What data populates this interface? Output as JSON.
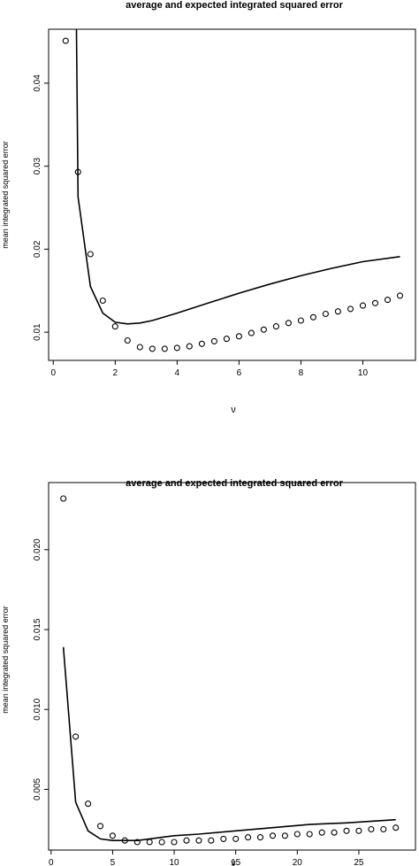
{
  "chart_data": [
    {
      "type": "line+scatter",
      "title": "average and expected integrated squared error",
      "xlabel": "ν",
      "ylabel": "mean integrated squared error",
      "xlim": [
        -0.15,
        11.7
      ],
      "ylim": [
        0.0066,
        0.0465
      ],
      "xticks": [
        0,
        2,
        4,
        6,
        8,
        10
      ],
      "yticks": [
        0.01,
        0.02,
        0.03,
        0.04
      ],
      "grid": false,
      "legend": "none",
      "series": [
        {
          "kind": "line",
          "x": [
            0.75,
            0.8,
            1.2,
            1.6,
            2.0,
            2.4,
            2.8,
            3.2,
            4.0,
            5.0,
            6.0,
            7.0,
            8.0,
            9.0,
            10.0,
            11.2
          ],
          "y": [
            0.0465,
            0.0263,
            0.0155,
            0.0123,
            0.0112,
            0.011,
            0.0111,
            0.0114,
            0.0123,
            0.0135,
            0.0147,
            0.0158,
            0.0168,
            0.0177,
            0.0185,
            0.0191
          ]
        },
        {
          "kind": "points",
          "x": [
            0.4,
            0.8,
            1.2,
            1.6,
            2.0,
            2.4,
            2.8,
            3.2,
            3.6,
            4.0,
            4.4,
            4.8,
            5.2,
            5.6,
            6.0,
            6.4,
            6.8,
            7.2,
            7.6,
            8.0,
            8.4,
            8.8,
            9.2,
            9.6,
            10.0,
            10.4,
            10.8,
            11.2
          ],
          "y": [
            0.0451,
            0.0293,
            0.0194,
            0.0138,
            0.0107,
            0.009,
            0.0082,
            0.008,
            0.008,
            0.0081,
            0.0083,
            0.0086,
            0.0089,
            0.0092,
            0.0095,
            0.0099,
            0.0103,
            0.0107,
            0.0111,
            0.0114,
            0.0118,
            0.0122,
            0.0125,
            0.0128,
            0.0132,
            0.0135,
            0.0139,
            0.0144
          ]
        }
      ]
    },
    {
      "type": "line+scatter",
      "title": "average and expected integrated squared error",
      "xlabel": "ν",
      "ylabel": "mean integrated squared error",
      "xlim": [
        -0.2,
        29.6
      ],
      "ylim": [
        0.0012,
        0.0242
      ],
      "xticks": [
        0,
        5,
        10,
        15,
        20,
        25
      ],
      "yticks": [
        0.005,
        0.01,
        0.015,
        0.02
      ],
      "yticklabels": [
        "0.005",
        "0.010",
        "0.015",
        "0.020"
      ],
      "grid": false,
      "legend": "none",
      "series": [
        {
          "kind": "line",
          "x": [
            1,
            2,
            3,
            4,
            5,
            6,
            7,
            8,
            9,
            10,
            12,
            15,
            18,
            21,
            24,
            28
          ],
          "y": [
            0.0139,
            0.0042,
            0.0024,
            0.0019,
            0.0018,
            0.0018,
            0.0018,
            0.0019,
            0.002,
            0.0021,
            0.0022,
            0.0024,
            0.0026,
            0.0028,
            0.0029,
            0.0031
          ]
        },
        {
          "kind": "points",
          "x": [
            1,
            2,
            3,
            4,
            5,
            6,
            7,
            8,
            9,
            10,
            11,
            12,
            13,
            14,
            15,
            16,
            17,
            18,
            19,
            20,
            21,
            22,
            23,
            24,
            25,
            26,
            27,
            28
          ],
          "y": [
            0.0232,
            0.0083,
            0.0041,
            0.0027,
            0.0021,
            0.0018,
            0.0017,
            0.0017,
            0.0017,
            0.0017,
            0.0018,
            0.0018,
            0.0018,
            0.0019,
            0.0019,
            0.002,
            0.002,
            0.0021,
            0.0021,
            0.0022,
            0.0022,
            0.0023,
            0.0023,
            0.0024,
            0.0024,
            0.0025,
            0.0025,
            0.0026
          ]
        }
      ]
    }
  ]
}
